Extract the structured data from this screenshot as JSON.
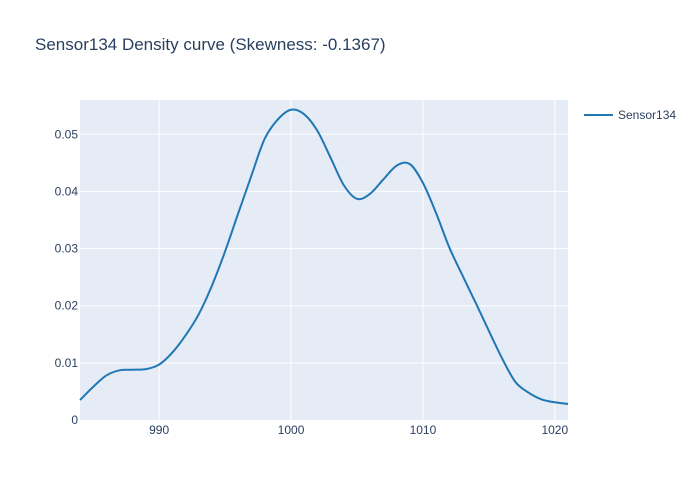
{
  "chart_data": {
    "type": "line",
    "title": "Sensor134 Density curve (Skewness: -0.1367)",
    "xlabel": "",
    "ylabel": "",
    "xlim": [
      984,
      1021
    ],
    "ylim": [
      0,
      0.056
    ],
    "grid": true,
    "legend_position": "top-right",
    "x_ticks": [
      990,
      1000,
      1010,
      1020
    ],
    "x_tick_labels": [
      "990",
      "1000",
      "1010",
      "1020"
    ],
    "y_ticks": [
      0,
      0.01,
      0.02,
      0.03,
      0.04,
      0.05
    ],
    "y_tick_labels": [
      "0",
      "0.01",
      "0.02",
      "0.03",
      "0.04",
      "0.05"
    ],
    "colors": {
      "plot_background": "#e5ecf6",
      "grid": "#ffffff",
      "line": "#1f77b4",
      "text": "#2a3f5f"
    },
    "series": [
      {
        "name": "Sensor134",
        "x": [
          984,
          985,
          986,
          987,
          988,
          989,
          990,
          991,
          992,
          993,
          994,
          995,
          996,
          997,
          998,
          999,
          1000,
          1001,
          1002,
          1003,
          1004,
          1005,
          1006,
          1007,
          1008,
          1009,
          1010,
          1011,
          1012,
          1013,
          1014,
          1015,
          1016,
          1017,
          1018,
          1019,
          1020,
          1021
        ],
        "y": [
          0.0035,
          0.0058,
          0.0078,
          0.0087,
          0.0088,
          0.0089,
          0.0097,
          0.0118,
          0.0148,
          0.0185,
          0.0235,
          0.0295,
          0.0362,
          0.0428,
          0.0492,
          0.0526,
          0.0543,
          0.0535,
          0.0506,
          0.0459,
          0.0411,
          0.0387,
          0.0396,
          0.0421,
          0.0445,
          0.0448,
          0.0415,
          0.0362,
          0.0302,
          0.0253,
          0.0205,
          0.0156,
          0.0108,
          0.0067,
          0.0048,
          0.0036,
          0.0031,
          0.0028
        ]
      }
    ]
  }
}
